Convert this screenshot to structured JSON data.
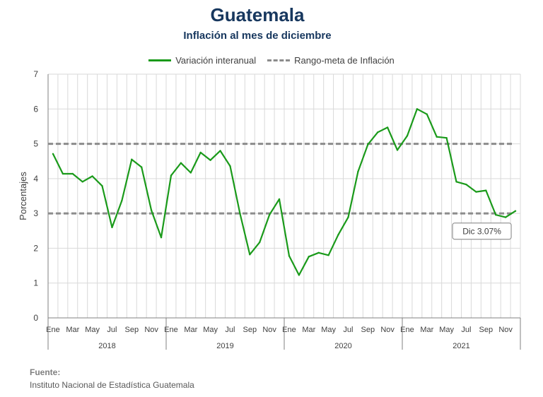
{
  "title": "Guatemala",
  "subtitle": "Inflación al mes de diciembre",
  "legend": {
    "series_label": "Variación interanual",
    "target_label": "Rango-meta de Inflación"
  },
  "source": {
    "heading": "Fuente:",
    "text": "Instituto Nacional de Estadística Guatemala"
  },
  "colors": {
    "series": "#1a9a1a",
    "target": "#8c8c8c",
    "title": "#17375e"
  },
  "chart_data": {
    "type": "line",
    "title": "Guatemala",
    "subtitle": "Inflación al mes de diciembre",
    "ylabel": "Porcentajes",
    "ylim": [
      0,
      7
    ],
    "yticks": [
      0,
      1,
      2,
      3,
      4,
      5,
      6,
      7
    ],
    "grid": true,
    "legend_position": "top",
    "x_tick_labels": [
      "Ene",
      "Mar",
      "May",
      "Jul",
      "Sep",
      "Nov"
    ],
    "years": [
      "2018",
      "2019",
      "2020",
      "2021"
    ],
    "series": [
      {
        "name": "Variación interanual",
        "values": [
          4.71,
          4.14,
          4.14,
          3.91,
          4.07,
          3.79,
          2.6,
          3.37,
          4.55,
          4.33,
          3.09,
          2.31,
          4.09,
          4.45,
          4.17,
          4.75,
          4.53,
          4.8,
          4.36,
          3.0,
          1.82,
          2.17,
          2.96,
          3.41,
          1.78,
          1.23,
          1.76,
          1.87,
          1.8,
          2.39,
          2.89,
          4.2,
          4.98,
          5.33,
          5.47,
          4.82,
          5.23,
          6.0,
          5.85,
          5.2,
          5.17,
          3.91,
          3.83,
          3.62,
          3.66,
          2.96,
          2.89,
          3.07
        ]
      },
      {
        "name": "Rango-meta de Inflación",
        "lower": 3,
        "upper": 5
      }
    ],
    "annotations": [
      {
        "text": "Dic 3.07%"
      }
    ]
  }
}
